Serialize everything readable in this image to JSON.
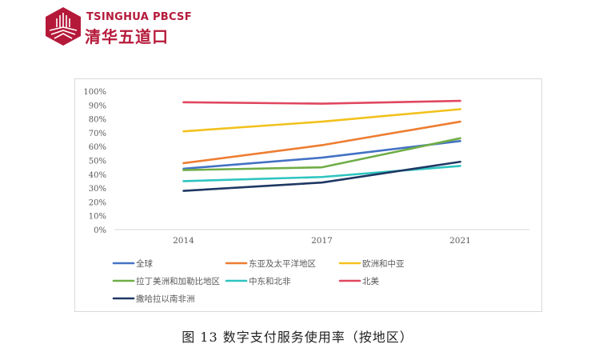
{
  "logo": {
    "en": "TSINGHUA PBCSF",
    "cn": "清华五道口",
    "color": "#b5193a"
  },
  "caption": "图 13 数字支付服务使用率（按地区）",
  "chart_data": {
    "type": "line",
    "title": "图 13 数字支付服务使用率（按地区）",
    "xlabel": "",
    "ylabel": "",
    "categories": [
      "2014",
      "2017",
      "2021"
    ],
    "ylim": [
      0,
      100
    ],
    "yticks": [
      "0%",
      "10%",
      "20%",
      "30%",
      "40%",
      "50%",
      "60%",
      "70%",
      "80%",
      "90%",
      "100%"
    ],
    "grid": false,
    "legend_position": "bottom",
    "series": [
      {
        "name": "全球",
        "color": "#4472c4",
        "values": [
          44,
          52,
          64
        ]
      },
      {
        "name": "东亚及太平洋地区",
        "color": "#ed7d31",
        "values": [
          48,
          61,
          78
        ]
      },
      {
        "name": "欧洲和中亚",
        "color": "#f2c11c",
        "values": [
          71,
          78,
          87
        ]
      },
      {
        "name": "拉丁美洲和加勒比地区",
        "color": "#70ad47",
        "values": [
          43,
          45,
          66
        ]
      },
      {
        "name": "中东和北非",
        "color": "#2ec4c0",
        "values": [
          35,
          38,
          46
        ]
      },
      {
        "name": "北美",
        "color": "#e0475f",
        "values": [
          92,
          91,
          93
        ]
      },
      {
        "name": "撒哈拉以南非洲",
        "color": "#1f3864",
        "values": [
          28,
          34,
          49
        ]
      }
    ]
  }
}
